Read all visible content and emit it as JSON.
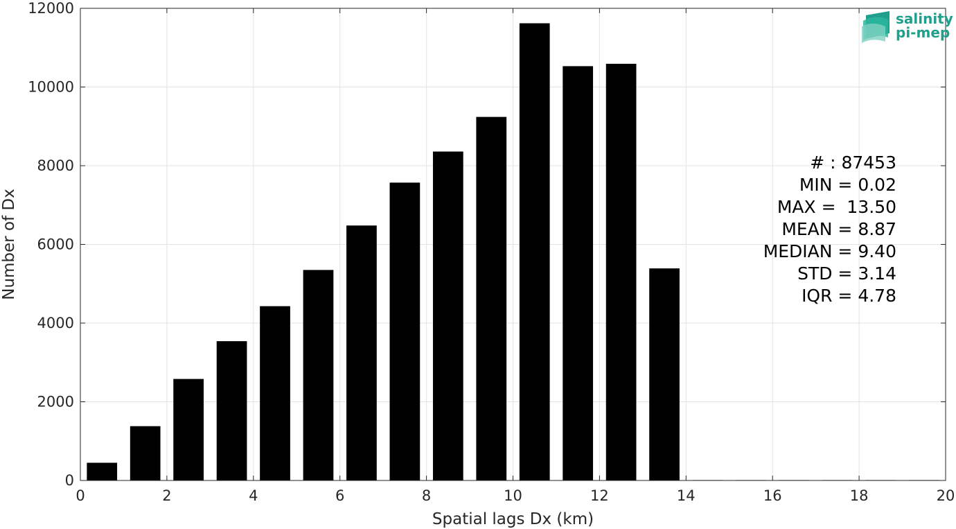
{
  "chart_data": {
    "type": "bar",
    "title": "",
    "xlabel": "Spatial lags Dx (km)",
    "ylabel": "Number of Dx",
    "xlim": [
      0,
      20
    ],
    "ylim": [
      0,
      12000
    ],
    "xticks": [
      0,
      2,
      4,
      6,
      8,
      10,
      12,
      14,
      16,
      18,
      20
    ],
    "yticks": [
      0,
      2000,
      4000,
      6000,
      8000,
      10000,
      12000
    ],
    "grid": true,
    "bar_color": "#000000",
    "bin_width": 1,
    "bar_width": 0.7,
    "x": [
      0.5,
      1.5,
      2.5,
      3.5,
      4.5,
      5.5,
      6.5,
      7.5,
      8.5,
      9.5,
      10.5,
      11.5,
      12.5,
      13.5,
      14.5,
      15.5,
      16.5,
      17.5,
      18.5,
      19.5
    ],
    "values": [
      450,
      1380,
      2580,
      3540,
      4430,
      5350,
      6480,
      7570,
      8360,
      9240,
      11620,
      10530,
      10590,
      5390,
      0,
      0,
      0,
      0,
      0,
      0
    ],
    "annotations": [
      "# : 87453",
      "MIN = 0.02",
      "MAX =  13.50",
      "MEAN = 8.87",
      "MEDIAN = 9.40",
      "STD = 3.14",
      "IQR = 4.78"
    ]
  },
  "logo": {
    "line1": "salinity",
    "line2": "pi-mep",
    "colors": [
      "#1f9f8c",
      "#2bb59f",
      "#7fd1c2"
    ]
  }
}
